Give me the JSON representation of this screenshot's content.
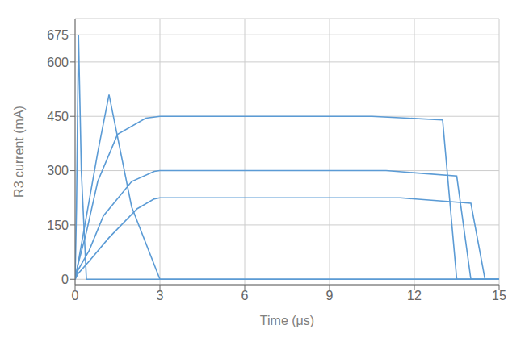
{
  "chart_data": {
    "type": "line",
    "xlabel": "Time (μs)",
    "ylabel": "R3 current (mA)",
    "xlim": [
      0,
      15
    ],
    "ylim": [
      -15,
      720
    ],
    "xticks": [
      0,
      3,
      6,
      9,
      12,
      15
    ],
    "yticks": [
      0,
      150,
      300,
      450,
      600,
      675
    ],
    "color": "#5b9bd5",
    "grid": true,
    "series": [
      {
        "x": [
          0,
          0.05,
          0.12,
          0.22,
          0.4,
          15.0
        ],
        "values": [
          0,
          200,
          675,
          300,
          0,
          0
        ]
      },
      {
        "x": [
          0,
          0.05,
          0.8,
          1.2,
          2.0,
          3.0,
          15.0
        ],
        "values": [
          0,
          20,
          350,
          510,
          200,
          0,
          0
        ]
      },
      {
        "x": [
          0,
          0.1,
          0.4,
          0.8,
          1.5,
          2.5,
          3.0,
          9.5,
          10.5,
          13.0,
          13.5,
          15.0
        ],
        "values": [
          0,
          40,
          130,
          270,
          400,
          445,
          450,
          450,
          450,
          440,
          0,
          0
        ]
      },
      {
        "x": [
          0,
          0.1,
          0.5,
          1.0,
          2.0,
          2.8,
          3.0,
          10.0,
          11.0,
          13.5,
          14.0,
          15.0
        ],
        "values": [
          0,
          25,
          80,
          175,
          270,
          298,
          300,
          300,
          300,
          285,
          0,
          0
        ]
      },
      {
        "x": [
          0,
          0.1,
          0.5,
          1.2,
          2.2,
          2.8,
          3.0,
          10.5,
          11.5,
          14.0,
          14.5,
          15.0
        ],
        "values": [
          0,
          15,
          50,
          115,
          195,
          222,
          225,
          225,
          225,
          210,
          0,
          0
        ]
      }
    ]
  }
}
